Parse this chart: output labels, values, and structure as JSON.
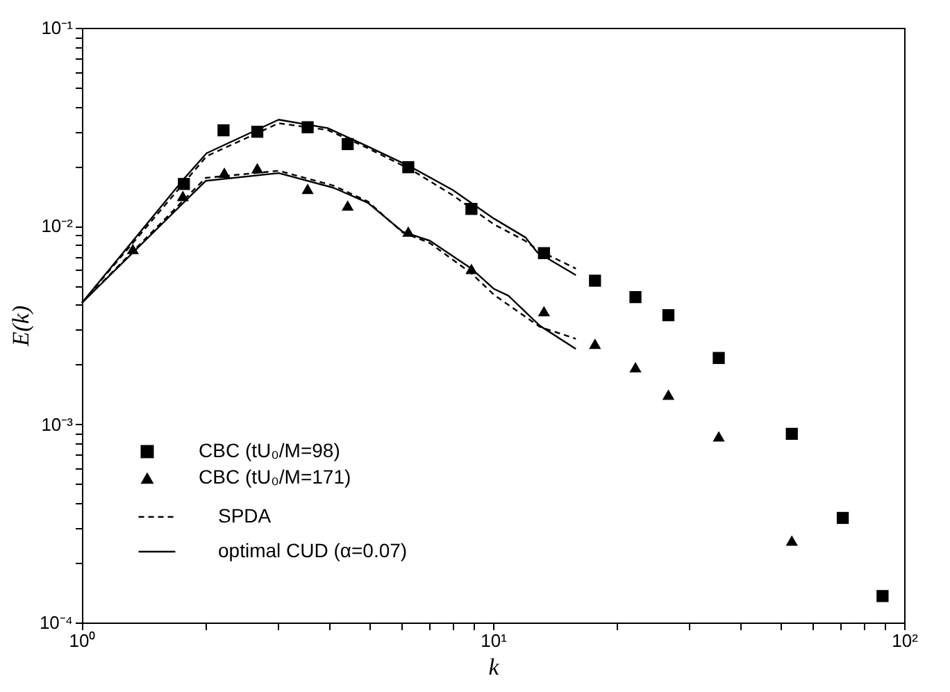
{
  "chart_data": {
    "type": "line",
    "xlabel": "k",
    "ylabel": "E(k)",
    "log": "xy",
    "xlim": [
      1,
      100
    ],
    "ylim": [
      0.0001,
      0.1
    ],
    "xticks": [
      {
        "value": 1,
        "label": "10⁰"
      },
      {
        "value": 2,
        "label": null
      },
      {
        "value": 3,
        "label": null
      },
      {
        "value": 4,
        "label": null
      },
      {
        "value": 5,
        "label": null
      },
      {
        "value": 6,
        "label": null
      },
      {
        "value": 7,
        "label": null
      },
      {
        "value": 8,
        "label": null
      },
      {
        "value": 9,
        "label": null
      },
      {
        "value": 10,
        "label": "10¹"
      },
      {
        "value": 20,
        "label": null
      },
      {
        "value": 30,
        "label": null
      },
      {
        "value": 40,
        "label": null
      },
      {
        "value": 50,
        "label": null
      },
      {
        "value": 60,
        "label": null
      },
      {
        "value": 70,
        "label": null
      },
      {
        "value": 80,
        "label": null
      },
      {
        "value": 90,
        "label": null
      },
      {
        "value": 100,
        "label": "10²"
      }
    ],
    "yticks": [
      {
        "value": 0.0001,
        "label": "10⁻⁴"
      },
      {
        "value": 0.0002,
        "label": null
      },
      {
        "value": 0.0003,
        "label": null
      },
      {
        "value": 0.0004,
        "label": null
      },
      {
        "value": 0.0005,
        "label": null
      },
      {
        "value": 0.0006,
        "label": null
      },
      {
        "value": 0.0007,
        "label": null
      },
      {
        "value": 0.0008,
        "label": null
      },
      {
        "value": 0.0009,
        "label": null
      },
      {
        "value": 0.001,
        "label": "10⁻³"
      },
      {
        "value": 0.002,
        "label": null
      },
      {
        "value": 0.003,
        "label": null
      },
      {
        "value": 0.004,
        "label": null
      },
      {
        "value": 0.005,
        "label": null
      },
      {
        "value": 0.006,
        "label": null
      },
      {
        "value": 0.007,
        "label": null
      },
      {
        "value": 0.008,
        "label": null
      },
      {
        "value": 0.009,
        "label": null
      },
      {
        "value": 0.01,
        "label": "10⁻²"
      },
      {
        "value": 0.02,
        "label": null
      },
      {
        "value": 0.03,
        "label": null
      },
      {
        "value": 0.04,
        "label": null
      },
      {
        "value": 0.05,
        "label": null
      },
      {
        "value": 0.06,
        "label": null
      },
      {
        "value": 0.07,
        "label": null
      },
      {
        "value": 0.08,
        "label": null
      },
      {
        "value": 0.09,
        "label": null
      },
      {
        "value": 0.1,
        "label": "10⁻¹"
      }
    ],
    "grid": false,
    "legend": "bottom left",
    "series": [
      {
        "name": "CBC (tU₀/M=98)",
        "type": "scatter",
        "marker": "square",
        "color": "#000000",
        "x": [
          1.77,
          2.21,
          2.67,
          3.54,
          4.43,
          6.22,
          8.86,
          13.3,
          17.7,
          22.2,
          26.7,
          35.4,
          53.3,
          70.9,
          88.6
        ],
        "values": [
          0.0163,
          0.0304,
          0.0299,
          0.0315,
          0.0259,
          0.0198,
          0.0122,
          0.0073,
          0.0053,
          0.00438,
          0.00355,
          0.00216,
          0.000895,
          0.000337,
          0.000136
        ]
      },
      {
        "name": "CBC (tU₀/M=171)",
        "type": "scatter",
        "marker": "triangle",
        "color": "#000000",
        "x": [
          1.33,
          1.76,
          2.22,
          2.67,
          3.54,
          4.43,
          6.22,
          8.86,
          13.3,
          17.7,
          22.2,
          26.7,
          35.4,
          53.3
        ],
        "values": [
          0.00766,
          0.0142,
          0.0186,
          0.0196,
          0.0154,
          0.0127,
          0.00938,
          0.00608,
          0.00372,
          0.00255,
          0.00194,
          0.00141,
          0.00087,
          0.000259
        ]
      },
      {
        "name": "SPDA",
        "line_style": "dashed",
        "color": "#000000",
        "x": [
          1,
          1.77,
          2.01,
          3.01,
          3.96,
          4.9,
          6.33,
          7.98,
          10.05,
          12.0,
          12.8,
          15.9
        ],
        "values": [
          0.0041,
          0.0165,
          0.0225,
          0.033,
          0.0305,
          0.025,
          0.0192,
          0.0143,
          0.0102,
          0.0084,
          0.0076,
          0.0061
        ]
      },
      {
        "line_style": "dashed",
        "color": "#000000",
        "x": [
          1,
          2.0,
          3.01,
          4.09,
          4.96,
          6.02,
          7.02,
          8.84,
          10.05,
          10.9,
          13.0,
          15.9
        ],
        "values": [
          0.0041,
          0.0175,
          0.019,
          0.016,
          0.0133,
          0.0093,
          0.0082,
          0.0058,
          0.0045,
          0.004,
          0.0031,
          0.0027
        ]
      },
      {
        "name": "optimal CUD (α=0.07)",
        "line_style": "solid",
        "color": "#000000",
        "x": [
          1,
          1.77,
          2.01,
          3.01,
          3.96,
          4.9,
          6.33,
          7.98,
          10.05,
          12.0,
          12.8,
          15.9
        ],
        "values": [
          0.0041,
          0.0173,
          0.0233,
          0.0344,
          0.0312,
          0.0255,
          0.0198,
          0.0152,
          0.0109,
          0.00875,
          0.00738,
          0.00565
        ]
      },
      {
        "line_style": "solid",
        "color": "#000000",
        "x": [
          1,
          2.0,
          3.01,
          4.09,
          4.96,
          6.02,
          7.02,
          8.84,
          10.05,
          10.9,
          13.0,
          15.9
        ],
        "values": [
          0.0041,
          0.0169,
          0.0185,
          0.0156,
          0.0131,
          0.00938,
          0.00843,
          0.00612,
          0.00482,
          0.00445,
          0.00314,
          0.0024
        ]
      }
    ]
  }
}
